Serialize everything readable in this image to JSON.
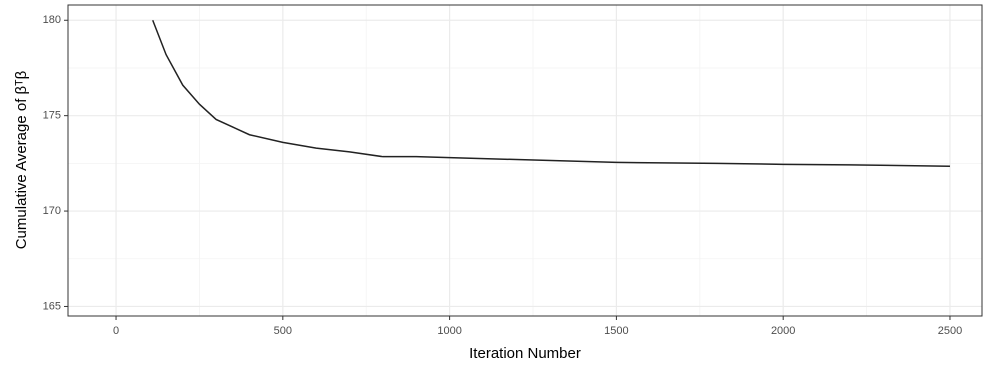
{
  "chart_data": {
    "type": "line",
    "x_label": "Iteration Number",
    "y_label": "Cumulative Average of βᵀβ",
    "x": [
      110,
      150,
      200,
      250,
      300,
      350,
      400,
      500,
      600,
      700,
      800,
      900,
      1000,
      1200,
      1500,
      1800,
      2000,
      2200,
      2500
    ],
    "series": [
      {
        "color": "#222222",
        "values": [
          180,
          178.2,
          176.6,
          175.6,
          174.8,
          174.4,
          174.0,
          173.6,
          173.3,
          173.1,
          172.85,
          172.85,
          172.8,
          172.7,
          172.55,
          172.5,
          172.45,
          172.42,
          172.35
        ]
      }
    ],
    "xlim": [
      -144,
      2596
    ],
    "ylim": [
      164.5,
      180.8
    ],
    "xticks": [
      0,
      500,
      1000,
      1500,
      2000,
      2500
    ],
    "yticks": [
      165,
      170,
      175,
      180
    ],
    "x_minor_grid": [
      250,
      750,
      1250,
      1750,
      2250
    ],
    "y_minor_grid": [
      167.5,
      172.5,
      177.5
    ],
    "grid": true
  }
}
